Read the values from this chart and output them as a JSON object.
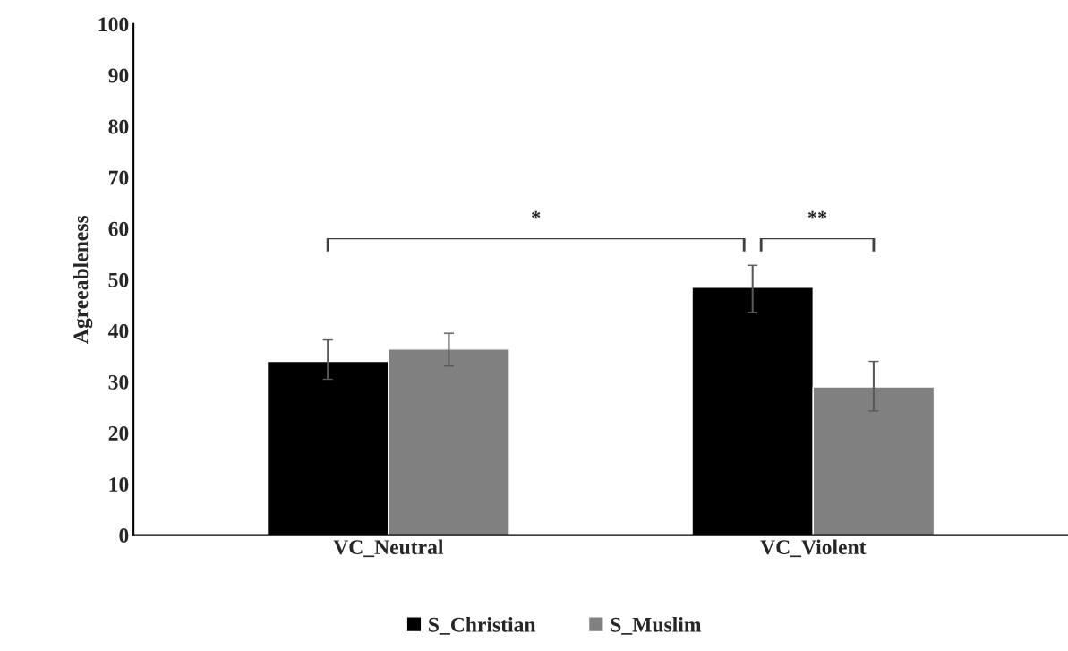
{
  "chart_data": {
    "type": "bar",
    "ylabel": "Agreeableness",
    "categories": [
      "VC_Neutral",
      "VC_Violent"
    ],
    "series": [
      {
        "name": "S_Christian",
        "color": "#000000",
        "values": [
          34,
          48.5
        ],
        "errors": [
          [
            30.5,
            38.2
          ],
          [
            43.6,
            52.8
          ]
        ]
      },
      {
        "name": "S_Muslim",
        "color": "#808080",
        "values": [
          36.4,
          29
        ],
        "errors": [
          [
            33.1,
            39.5
          ],
          [
            24.3,
            34
          ]
        ]
      }
    ],
    "ylim": [
      0,
      100
    ],
    "yticks": [
      0,
      10,
      20,
      30,
      40,
      50,
      60,
      70,
      80,
      90,
      100
    ],
    "grid": false,
    "legend": "bottom",
    "annotations": [
      "*",
      "**"
    ]
  }
}
